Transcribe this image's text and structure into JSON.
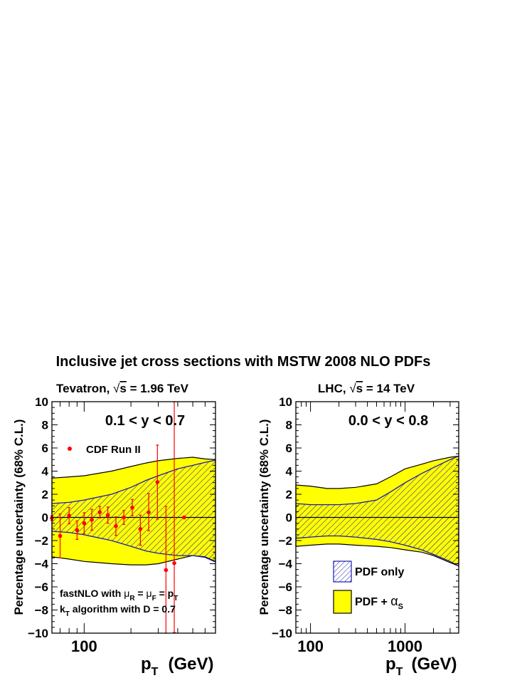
{
  "figure": {
    "title": "Inclusive jet cross sections with MSTW 2008 NLO PDFs"
  },
  "colors": {
    "band_fill": "#ffff00",
    "band_line": "#000000",
    "hatch": "#1a1ab4",
    "data": "#ff0000",
    "zero_line": "#000000"
  },
  "chart_data": [
    {
      "type": "area",
      "panel": "left",
      "header": {
        "prefix": "Tevatron, ",
        "sqrt_s": "s",
        "suffix": " = 1.96 TeV"
      },
      "rapidity_label": "0.1 < y < 0.7",
      "ylabel": "Percentage uncertainty (68% C.L.)",
      "xlabel_main": "p",
      "xlabel_sub": "T",
      "xlabel_unit": "(GeV)",
      "xscale": "log",
      "xlim": [
        62,
        700
      ],
      "ylim": [
        -10,
        10
      ],
      "yticks": [
        -10,
        -8,
        -6,
        -4,
        -2,
        0,
        2,
        4,
        6,
        8,
        10
      ],
      "ytick_labels": [
        "−10",
        "−8",
        "−6",
        "−4",
        "−2",
        "0",
        "2",
        "4",
        "6",
        "8",
        "10"
      ],
      "xtick_labels": [
        {
          "value": 100,
          "label": "100"
        }
      ],
      "grid": false,
      "series": [
        {
          "name": "PDF + αS",
          "style": "band-yellow",
          "x": [
            62,
            80,
            100,
            150,
            200,
            250,
            300,
            400,
            500,
            600,
            700
          ],
          "upper": [
            3.4,
            3.5,
            3.6,
            4.0,
            4.4,
            4.7,
            4.9,
            5.1,
            5.2,
            5.05,
            5.0
          ],
          "lower": [
            -3.4,
            -3.6,
            -3.8,
            -4.0,
            -4.1,
            -4.1,
            -4.0,
            -3.6,
            -3.3,
            -3.4,
            -3.8
          ]
        },
        {
          "name": "PDF only",
          "style": "band-hatched",
          "x": [
            62,
            80,
            100,
            150,
            200,
            250,
            300,
            400,
            500,
            600,
            700
          ],
          "upper": [
            1.2,
            1.3,
            1.5,
            2.0,
            2.6,
            3.2,
            3.6,
            4.2,
            4.5,
            4.75,
            4.95
          ],
          "lower": [
            -1.2,
            -1.3,
            -1.5,
            -2.0,
            -2.5,
            -2.9,
            -3.1,
            -3.3,
            -3.3,
            -3.45,
            -3.85
          ]
        },
        {
          "name": "CDF Run II",
          "style": "points-errors",
          "x": [
            62,
            70,
            80,
            90,
            100,
            112,
            126,
            142,
            160,
            180,
            204,
            230,
            260,
            296,
            336,
            380,
            440
          ],
          "y": [
            -0.05,
            -1.6,
            0.15,
            -1.1,
            -0.5,
            -0.2,
            0.45,
            0.2,
            -0.75,
            0.0,
            0.85,
            -1.0,
            0.45,
            3.05,
            -4.55,
            -3.95,
            0.0
          ],
          "err_up": [
            0.2,
            1.9,
            0.7,
            0.8,
            0.9,
            0.9,
            0.5,
            0.7,
            0.8,
            0.6,
            0.7,
            1.2,
            1.6,
            3.2,
            5.5,
            14.0,
            0.0
          ],
          "err_dn": [
            0.2,
            1.9,
            0.7,
            0.8,
            0.9,
            0.9,
            0.5,
            0.7,
            0.8,
            0.6,
            0.7,
            1.4,
            1.6,
            3.2,
            5.5,
            6.0,
            0.0
          ]
        }
      ],
      "legend": {
        "label": "CDF Run II",
        "placement": "top-left"
      },
      "annotations": {
        "line1_prefix": "fastNLO with ",
        "line1_mu1": "μ",
        "line1_sub1": "R",
        "line1_eq1": " = ",
        "line1_mu2": "μ",
        "line1_sub2": "F",
        "line1_eq2": " = p",
        "line1_sub3": "T",
        "line2_k": "k",
        "line2_sub": "T",
        "line2_rest": " algorithm with D = 0.7"
      }
    },
    {
      "type": "area",
      "panel": "right",
      "header": {
        "prefix": "LHC, ",
        "sqrt_s": "s",
        "suffix": " = 14 TeV"
      },
      "rapidity_label": "0.0 < y < 0.8",
      "ylabel": "Percentage uncertainty (68% C.L.)",
      "xlabel_main": "p",
      "xlabel_sub": "T",
      "xlabel_unit": "(GeV)",
      "xscale": "log",
      "xlim": [
        70,
        3700
      ],
      "ylim": [
        -10,
        10
      ],
      "yticks": [
        -10,
        -8,
        -6,
        -4,
        -2,
        0,
        2,
        4,
        6,
        8,
        10
      ],
      "ytick_labels": [
        "−10",
        "−8",
        "−6",
        "−4",
        "−2",
        "0",
        "2",
        "4",
        "6",
        "8",
        "10"
      ],
      "xtick_labels": [
        {
          "value": 100,
          "label": "100"
        },
        {
          "value": 1000,
          "label": "1000"
        }
      ],
      "grid": false,
      "series": [
        {
          "name": "PDF + αS",
          "style": "band-yellow",
          "x": [
            70,
            100,
            150,
            200,
            300,
            500,
            700,
            1000,
            1500,
            2000,
            3000,
            3700
          ],
          "upper": [
            2.8,
            2.7,
            2.5,
            2.5,
            2.6,
            2.9,
            3.5,
            4.2,
            4.6,
            4.9,
            5.2,
            5.3
          ],
          "lower": [
            -2.5,
            -2.4,
            -2.3,
            -2.3,
            -2.4,
            -2.5,
            -2.6,
            -2.8,
            -3.0,
            -3.3,
            -3.9,
            -4.2
          ]
        },
        {
          "name": "PDF only",
          "style": "band-hatched",
          "x": [
            70,
            100,
            150,
            200,
            300,
            500,
            700,
            1000,
            1500,
            2000,
            3000,
            3700
          ],
          "upper": [
            1.2,
            1.1,
            1.1,
            1.1,
            1.2,
            1.5,
            2.2,
            3.0,
            3.8,
            4.3,
            5.0,
            5.3
          ],
          "lower": [
            -1.8,
            -1.7,
            -1.6,
            -1.6,
            -1.7,
            -1.9,
            -2.1,
            -2.4,
            -2.8,
            -3.2,
            -3.8,
            -4.2
          ]
        }
      ],
      "legend": {
        "placement": "bottom-right",
        "entries": [
          {
            "style": "hatched",
            "label": "PDF only",
            "label_sub": ""
          },
          {
            "style": "yellow",
            "label": "PDF + ",
            "label_alpha": "α",
            "label_sub": "S"
          }
        ]
      }
    }
  ]
}
